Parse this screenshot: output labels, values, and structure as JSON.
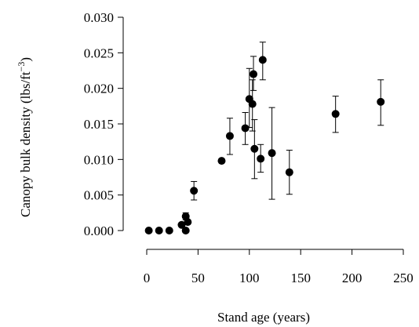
{
  "chart_data": {
    "type": "scatter",
    "title": "",
    "xlabel": "Stand age (years)",
    "ylabel_main": "Canopy bulk density (lbs/ft",
    "ylabel_sup": "−3",
    "ylabel_close": ")",
    "xlim": [
      0,
      255
    ],
    "ylim": [
      -0.0005,
      0.031
    ],
    "xticks": [
      0,
      50,
      100,
      150,
      200,
      250
    ],
    "xtick_labels": [
      "0",
      "50",
      "100",
      "150",
      "200",
      "250"
    ],
    "yticks": [
      0,
      0.005,
      0.01,
      0.015,
      0.02,
      0.025,
      0.03
    ],
    "ytick_labels": [
      "0.000",
      "0.005",
      "0.010",
      "0.015",
      "0.020",
      "0.025",
      "0.030"
    ],
    "grid": false,
    "legend": "none",
    "marker_color": "#000000",
    "points": [
      {
        "x": 2,
        "y": 0.0
      },
      {
        "x": 12,
        "y": 0.0
      },
      {
        "x": 22,
        "y": 0.0
      },
      {
        "x": 34,
        "y": 0.0008
      },
      {
        "x": 38,
        "y": 0.0
      },
      {
        "x": 38,
        "y": 0.002,
        "lo": 0.0015,
        "hi": 0.0025
      },
      {
        "x": 40,
        "y": 0.0012
      },
      {
        "x": 46,
        "y": 0.0056,
        "lo": 0.0043,
        "hi": 0.0069
      },
      {
        "x": 73,
        "y": 0.0098
      },
      {
        "x": 81,
        "y": 0.0133,
        "lo": 0.0107,
        "hi": 0.0158
      },
      {
        "x": 96,
        "y": 0.0144,
        "lo": 0.0121,
        "hi": 0.0166
      },
      {
        "x": 100,
        "y": 0.0185,
        "lo": 0.0145,
        "hi": 0.0228
      },
      {
        "x": 103,
        "y": 0.0178,
        "lo": 0.014,
        "hi": 0.0212
      },
      {
        "x": 104,
        "y": 0.022,
        "lo": 0.0197,
        "hi": 0.0245
      },
      {
        "x": 105,
        "y": 0.0115,
        "lo": 0.0073,
        "hi": 0.0156
      },
      {
        "x": 111,
        "y": 0.0101,
        "lo": 0.0082,
        "hi": 0.0121
      },
      {
        "x": 113,
        "y": 0.024,
        "lo": 0.0212,
        "hi": 0.0265
      },
      {
        "x": 122,
        "y": 0.0109,
        "lo": 0.0044,
        "hi": 0.0173
      },
      {
        "x": 139,
        "y": 0.0082,
        "lo": 0.0051,
        "hi": 0.0113
      },
      {
        "x": 184,
        "y": 0.0164,
        "lo": 0.0138,
        "hi": 0.0189
      },
      {
        "x": 228,
        "y": 0.0181,
        "lo": 0.0148,
        "hi": 0.0212
      }
    ]
  }
}
